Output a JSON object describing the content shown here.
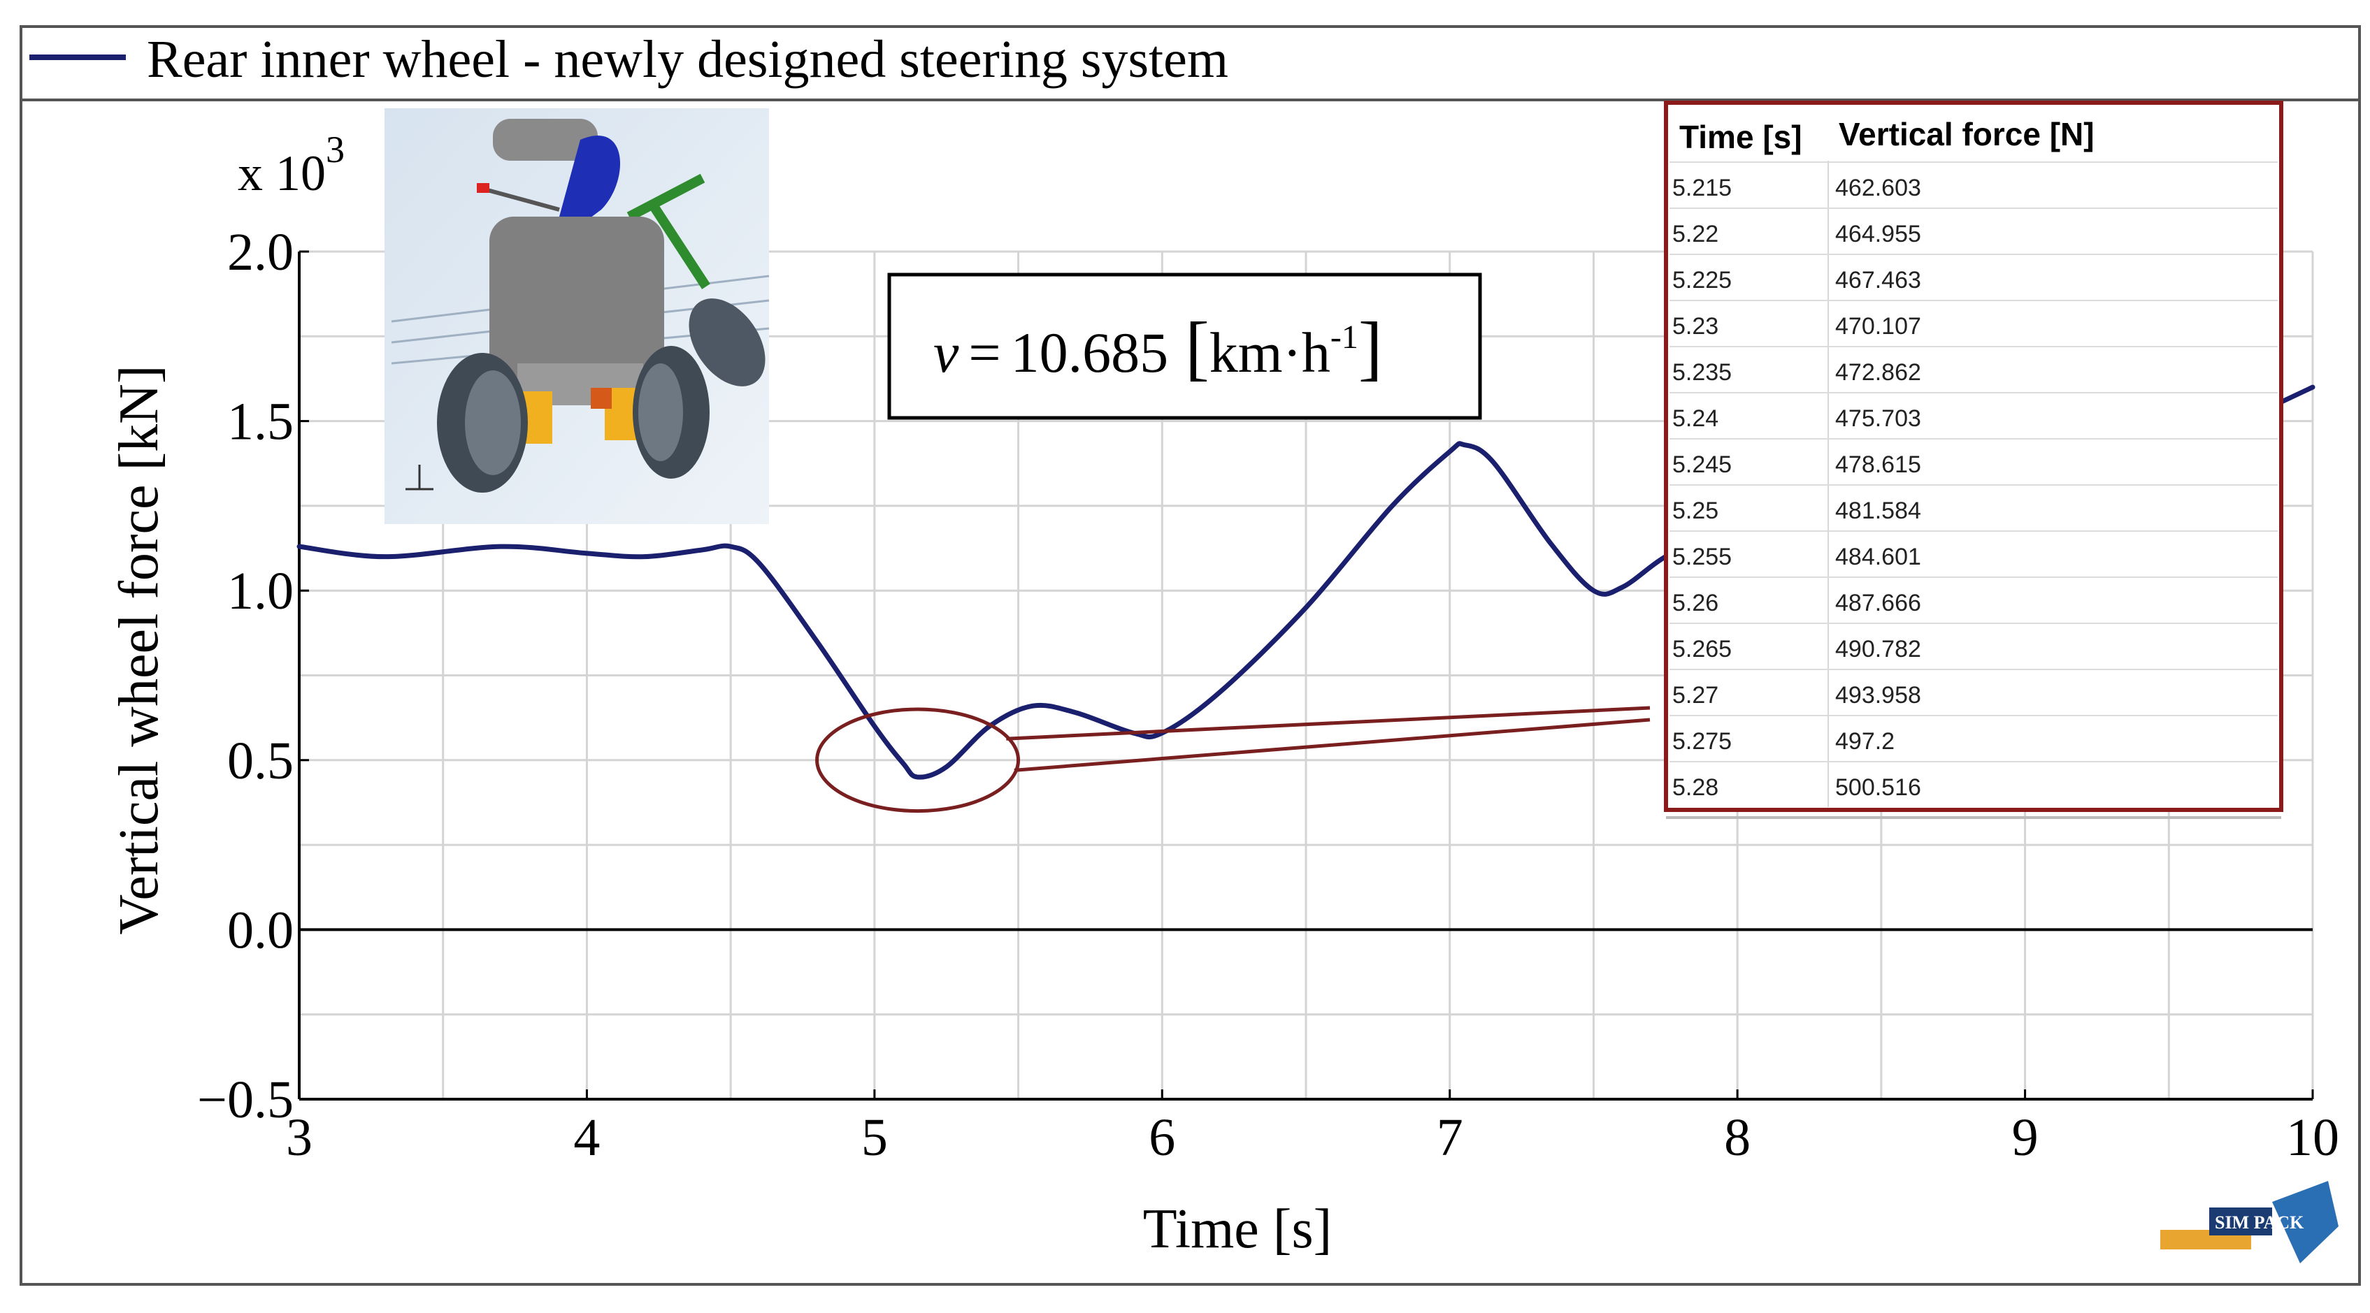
{
  "legend": {
    "entries": [
      {
        "label": "Rear inner wheel - newly designed steering system",
        "color": "#1a1f6e"
      }
    ],
    "placement": "top"
  },
  "speed_box": {
    "symbol": "v",
    "equals": "=",
    "value": "10.685",
    "unit": "km·h",
    "unit_exp": "-1"
  },
  "table": {
    "headers": [
      "Time [s]",
      "Vertical force [N]"
    ],
    "rows": [
      [
        "5.215",
        "462.603"
      ],
      [
        "5.22",
        "464.955"
      ],
      [
        "5.225",
        "467.463"
      ],
      [
        "5.23",
        "470.107"
      ],
      [
        "5.235",
        "472.862"
      ],
      [
        "5.24",
        "475.703"
      ],
      [
        "5.245",
        "478.615"
      ],
      [
        "5.25",
        "481.584"
      ],
      [
        "5.255",
        "484.601"
      ],
      [
        "5.26",
        "487.666"
      ],
      [
        "5.265",
        "490.782"
      ],
      [
        "5.27",
        "493.958"
      ],
      [
        "5.275",
        "497.2"
      ],
      [
        "5.28",
        "500.516"
      ]
    ],
    "border_color": "#8b1a1a"
  },
  "logo": {
    "text": "SIM PACK"
  },
  "chart_data": {
    "type": "line",
    "xlabel": "Time [s]",
    "ylabel": "Vertical wheel force [kN]",
    "y_multiplier": "x 10",
    "y_multiplier_exp": "3",
    "xlim": [
      3,
      10
    ],
    "ylim": [
      -0.5,
      2.0
    ],
    "xticks": [
      "3",
      "4",
      "5",
      "6",
      "7",
      "8",
      "9",
      "10"
    ],
    "yticks": [
      "2.0",
      "1.5",
      "1.0",
      "0.5",
      "0.0",
      "−0.5"
    ],
    "ytick_values": [
      2.0,
      1.5,
      1.0,
      0.5,
      0.0,
      -0.5
    ],
    "grid": true,
    "series": [
      {
        "name": "Rear inner wheel - newly designed steering system",
        "color": "#1a1f6e",
        "x": [
          3.0,
          3.3,
          3.7,
          4.0,
          4.2,
          4.4,
          4.5,
          4.6,
          4.8,
          5.0,
          5.1,
          5.15,
          5.25,
          5.4,
          5.55,
          5.7,
          5.9,
          6.0,
          6.2,
          6.5,
          6.8,
          7.0,
          7.05,
          7.15,
          7.35,
          7.5,
          7.6,
          7.75,
          7.9,
          8.05,
          8.2,
          8.4,
          8.6,
          8.8,
          9.0,
          9.2,
          9.4,
          9.6,
          9.8,
          10.0
        ],
        "y": [
          1.13,
          1.1,
          1.13,
          1.11,
          1.1,
          1.12,
          1.13,
          1.08,
          0.85,
          0.6,
          0.49,
          0.45,
          0.48,
          0.6,
          0.66,
          0.64,
          0.58,
          0.58,
          0.7,
          0.95,
          1.25,
          1.41,
          1.43,
          1.38,
          1.14,
          1.0,
          1.01,
          1.1,
          1.15,
          1.18,
          1.18,
          1.2,
          1.22,
          1.25,
          1.28,
          1.33,
          1.38,
          1.44,
          1.52,
          1.6
        ]
      }
    ],
    "annotations": [
      {
        "type": "ellipse",
        "x": 5.15,
        "y": 0.5,
        "rx_data": 0.35,
        "ry_data": 0.15,
        "color": "#7a1f1f"
      }
    ]
  }
}
